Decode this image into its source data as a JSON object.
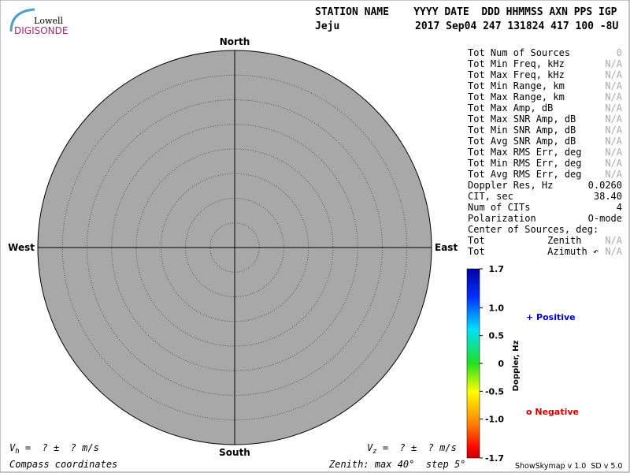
{
  "header": {
    "logo_top": "Lowell",
    "logo_bottom": "DIGISONDE",
    "columns": "STATION NAME    YYYY DATE  DDD HHMMSS AXN PPS IGP",
    "station": "Jeju",
    "record": "2017 Sep04 247 131824 417 100 -8U"
  },
  "compass": {
    "north": "North",
    "south": "South",
    "east": "East",
    "west": "West"
  },
  "zenith": {
    "label": "Zenith: max 40°  step 5°",
    "max": 40,
    "step": 5
  },
  "stats": [
    [
      "Tot Num of Sources",
      "0"
    ],
    [
      "Tot Min Freq, kHz",
      "N/A"
    ],
    [
      "Tot Max Freq, kHz",
      "N/A"
    ],
    [
      "Tot Min Range, km",
      "N/A"
    ],
    [
      "Tot Max Range, km",
      "N/A"
    ],
    [
      "Tot Max Amp, dB",
      "N/A"
    ],
    [
      "Tot Max SNR Amp, dB",
      "N/A"
    ],
    [
      "Tot Min SNR Amp, dB",
      "N/A"
    ],
    [
      "Tot Avg SNR Amp, dB",
      "N/A"
    ],
    [
      "Tot Max RMS Err, deg",
      "N/A"
    ],
    [
      "Tot Min RMS Err, deg",
      "N/A"
    ],
    [
      "Tot Avg RMS Err, deg",
      "N/A"
    ],
    [
      "Doppler Res, Hz",
      "0.0260"
    ],
    [
      "CIT, sec",
      "38.40"
    ],
    [
      "Num of CITs",
      "4"
    ],
    [
      "Polarization",
      "O-mode"
    ],
    [
      "Center of Sources, deg:",
      ""
    ],
    [
      "Tot           Zenith",
      "N/A"
    ],
    [
      "Tot           Azimuth ↶",
      "N/A"
    ]
  ],
  "colorbar": {
    "label": "Doppler, Hz",
    "ylim": [
      -1.7,
      1.7
    ],
    "yticks": [
      1.7,
      {
        "value": 1,
        "label": "1.0"
      },
      0.5,
      0,
      -0.5,
      {
        "value": -1,
        "label": "-1.0"
      },
      -1.7
    ]
  },
  "legend": {
    "positive": "+ Positive",
    "negative": "o Negative"
  },
  "footer": {
    "vh_symbol": "V",
    "vh_sub": "h",
    "vh_rest": " =  ? ±  ? m/s",
    "vz_symbol": "V",
    "vz_sub": "z",
    "vz_rest": " =  ? ±  ? m/s",
    "coords": "Compass coordinates",
    "version": "ShowSkymap v 1.0  SD v 5.0"
  }
}
